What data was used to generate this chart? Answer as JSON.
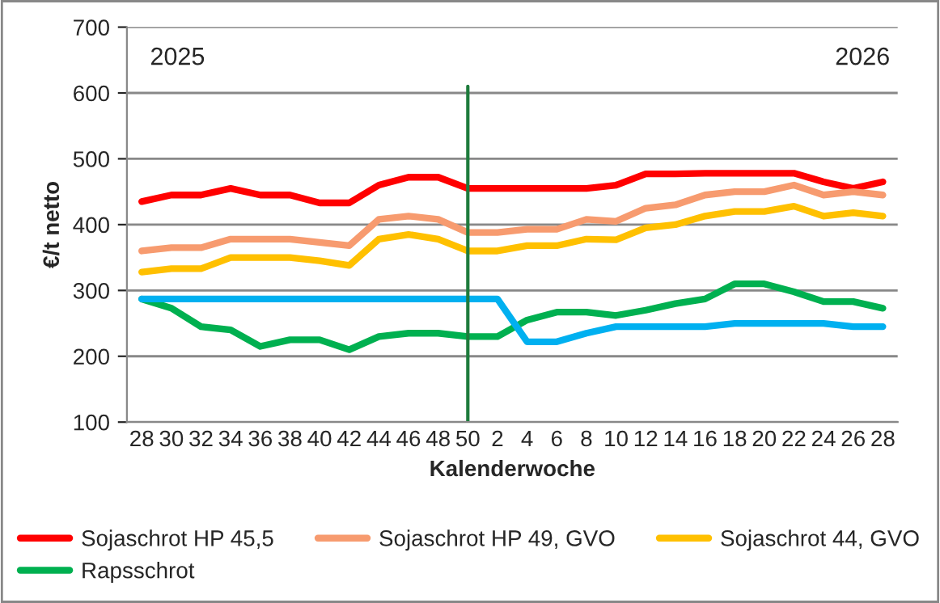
{
  "chart_data": {
    "type": "line",
    "xlabel": "Kalenderwoche",
    "ylabel": "€/t netto",
    "categories": [
      "28",
      "30",
      "32",
      "34",
      "36",
      "38",
      "40",
      "42",
      "44",
      "46",
      "48",
      "50",
      "2",
      "4",
      "6",
      "8",
      "10",
      "12",
      "14",
      "16",
      "18",
      "20",
      "22",
      "24",
      "26",
      "28"
    ],
    "series": [
      {
        "name": "Sojaschrot HP 45,5",
        "color": "#ff0000",
        "values": [
          435,
          445,
          445,
          455,
          445,
          445,
          433,
          433,
          460,
          472,
          472,
          455,
          455,
          455,
          455,
          455,
          460,
          477,
          477,
          478,
          478,
          478,
          478,
          465,
          455,
          465
        ]
      },
      {
        "name": "Sojaschrot HP 49, GVO",
        "color": "#f79b6f",
        "values": [
          360,
          365,
          365,
          378,
          378,
          378,
          373,
          368,
          408,
          413,
          408,
          388,
          388,
          393,
          393,
          408,
          405,
          425,
          430,
          445,
          450,
          450,
          460,
          445,
          450,
          445
        ]
      },
      {
        "name": "Sojaschrot 44, GVO",
        "color": "#ffc000",
        "values": [
          328,
          333,
          333,
          350,
          350,
          350,
          345,
          338,
          378,
          385,
          378,
          360,
          360,
          368,
          368,
          378,
          377,
          395,
          400,
          413,
          420,
          420,
          428,
          413,
          418,
          413
        ]
      },
      {
        "name": "Rapsschrot",
        "color": "#00b050",
        "values": [
          287,
          273,
          245,
          240,
          215,
          225,
          225,
          210,
          230,
          235,
          235,
          230,
          230,
          255,
          267,
          267,
          262,
          270,
          280,
          287,
          310,
          310,
          298,
          283,
          283,
          273
        ]
      },
      {
        "color": "#00b0f0",
        "values": [
          287,
          287,
          287,
          287,
          287,
          287,
          287,
          287,
          287,
          287,
          287,
          287,
          287,
          222,
          222,
          235,
          245,
          245,
          245,
          245,
          250,
          250,
          250,
          250,
          245,
          245
        ]
      }
    ],
    "ylim": [
      100,
      700
    ],
    "yticks": [
      100,
      200,
      300,
      400,
      500,
      600,
      700
    ],
    "grid": "y",
    "legend": "bottom",
    "marker": "none",
    "line_style": "solid",
    "ref_lines": [
      {
        "axis": "x",
        "value": "50",
        "color": "#1e7b3c"
      }
    ],
    "annotations": [
      "2025",
      "2026"
    ]
  }
}
